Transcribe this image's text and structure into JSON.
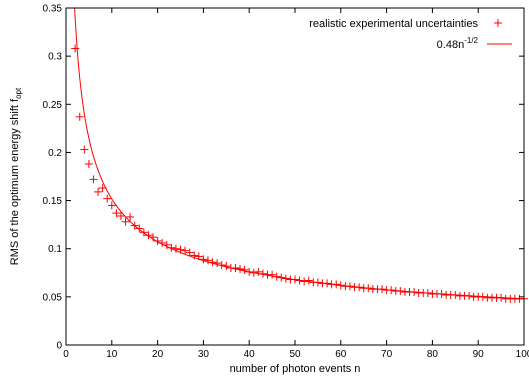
{
  "chart_data": {
    "type": "scatter",
    "xlabel": "number of photon events n",
    "ylabel": "RMS of the optimum energy shift f",
    "ylabel_subscript": "opt",
    "xlim": [
      0,
      100
    ],
    "ylim": [
      0,
      0.35
    ],
    "x_ticks": [
      "0",
      "10",
      "20",
      "30",
      "40",
      "50",
      "60",
      "70",
      "80",
      "90",
      "100"
    ],
    "y_ticks": [
      "0",
      "0.05",
      "0.1",
      "0.15",
      "0.2",
      "0.25",
      "0.3",
      "0.35"
    ],
    "grid": false,
    "legend_position": "top-right",
    "series": [
      {
        "name": "realistic experimental uncertainties",
        "kind": "points",
        "color": "#ff0000",
        "x": [
          2,
          3,
          4,
          5,
          6,
          7,
          8,
          9,
          10,
          11,
          12,
          13,
          14,
          15,
          16,
          17,
          18,
          19,
          20,
          21,
          22,
          23,
          24,
          25,
          26,
          27,
          28,
          29,
          30,
          31,
          32,
          33,
          34,
          35,
          36,
          37,
          38,
          39,
          40,
          41,
          42,
          43,
          44,
          45,
          46,
          47,
          48,
          49,
          50,
          51,
          52,
          53,
          54,
          55,
          56,
          57,
          58,
          59,
          60,
          61,
          62,
          63,
          64,
          65,
          66,
          67,
          68,
          69,
          70,
          71,
          72,
          73,
          74,
          75,
          76,
          77,
          78,
          79,
          80,
          81,
          82,
          83,
          84,
          85,
          86,
          87,
          88,
          89,
          90,
          91,
          92,
          93,
          94,
          95,
          96,
          97,
          98,
          99,
          100
        ],
        "y": [
          0.308,
          0.237,
          0.203,
          0.188,
          0.172,
          0.159,
          0.163,
          0.152,
          0.145,
          0.137,
          0.134,
          0.128,
          0.133,
          0.124,
          0.121,
          0.117,
          0.114,
          0.112,
          0.108,
          0.106,
          0.104,
          0.101,
          0.1,
          0.099,
          0.098,
          0.096,
          0.093,
          0.092,
          0.089,
          0.088,
          0.086,
          0.085,
          0.083,
          0.082,
          0.08,
          0.08,
          0.079,
          0.078,
          0.076,
          0.075,
          0.076,
          0.074,
          0.073,
          0.073,
          0.071,
          0.07,
          0.069,
          0.068,
          0.068,
          0.067,
          0.066,
          0.067,
          0.065,
          0.065,
          0.064,
          0.064,
          0.063,
          0.063,
          0.062,
          0.061,
          0.061,
          0.06,
          0.06,
          0.059,
          0.059,
          0.058,
          0.058,
          0.058,
          0.057,
          0.057,
          0.056,
          0.056,
          0.055,
          0.055,
          0.055,
          0.054,
          0.054,
          0.054,
          0.053,
          0.053,
          0.053,
          0.052,
          0.052,
          0.052,
          0.051,
          0.051,
          0.051,
          0.05,
          0.05,
          0.05,
          0.049,
          0.049,
          0.049,
          0.049,
          0.048,
          0.048,
          0.048,
          0.048,
          0.048
        ]
      },
      {
        "name": "0.48n",
        "name_superscript": "-1/2",
        "kind": "line",
        "color": "#ff0000",
        "coefficient": 0.48,
        "exponent": -0.5
      }
    ]
  }
}
